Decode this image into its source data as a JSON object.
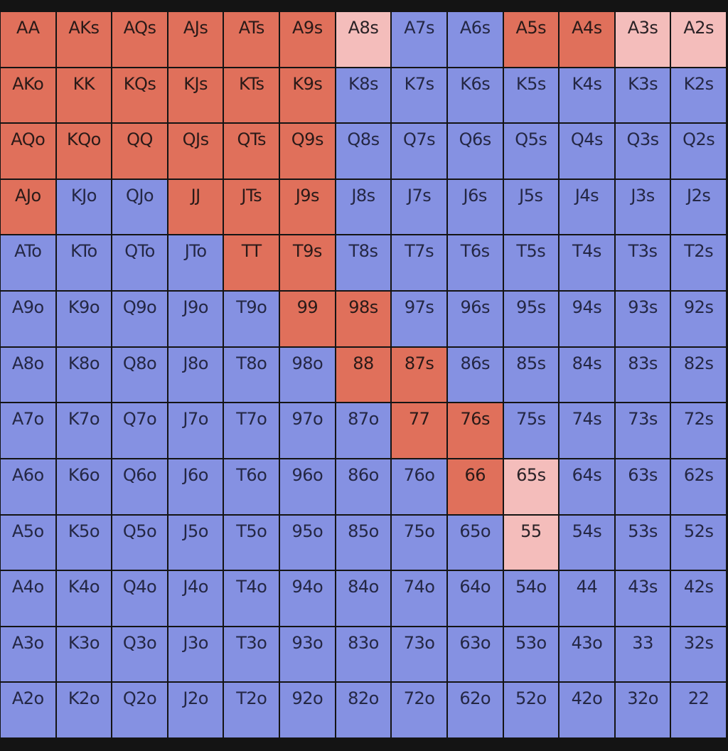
{
  "colors": {
    "raise": "#e0705b",
    "mixed": "#f4bdbb",
    "fold": "#8591e2",
    "background": "#141414"
  },
  "rows": [
    [
      [
        "AA",
        "raise"
      ],
      [
        "AKs",
        "raise"
      ],
      [
        "AQs",
        "raise"
      ],
      [
        "AJs",
        "raise"
      ],
      [
        "ATs",
        "raise"
      ],
      [
        "A9s",
        "raise"
      ],
      [
        "A8s",
        "mixed"
      ],
      [
        "A7s",
        "fold"
      ],
      [
        "A6s",
        "fold"
      ],
      [
        "A5s",
        "raise"
      ],
      [
        "A4s",
        "raise"
      ],
      [
        "A3s",
        "mixed"
      ],
      [
        "A2s",
        "mixed"
      ]
    ],
    [
      [
        "AKo",
        "raise"
      ],
      [
        "KK",
        "raise"
      ],
      [
        "KQs",
        "raise"
      ],
      [
        "KJs",
        "raise"
      ],
      [
        "KTs",
        "raise"
      ],
      [
        "K9s",
        "raise"
      ],
      [
        "K8s",
        "fold"
      ],
      [
        "K7s",
        "fold"
      ],
      [
        "K6s",
        "fold"
      ],
      [
        "K5s",
        "fold"
      ],
      [
        "K4s",
        "fold"
      ],
      [
        "K3s",
        "fold"
      ],
      [
        "K2s",
        "fold"
      ]
    ],
    [
      [
        "AQo",
        "raise"
      ],
      [
        "KQo",
        "raise"
      ],
      [
        "QQ",
        "raise"
      ],
      [
        "QJs",
        "raise"
      ],
      [
        "QTs",
        "raise"
      ],
      [
        "Q9s",
        "raise"
      ],
      [
        "Q8s",
        "fold"
      ],
      [
        "Q7s",
        "fold"
      ],
      [
        "Q6s",
        "fold"
      ],
      [
        "Q5s",
        "fold"
      ],
      [
        "Q4s",
        "fold"
      ],
      [
        "Q3s",
        "fold"
      ],
      [
        "Q2s",
        "fold"
      ]
    ],
    [
      [
        "AJo",
        "raise"
      ],
      [
        "KJo",
        "fold"
      ],
      [
        "QJo",
        "fold"
      ],
      [
        "JJ",
        "raise"
      ],
      [
        "JTs",
        "raise"
      ],
      [
        "J9s",
        "raise"
      ],
      [
        "J8s",
        "fold"
      ],
      [
        "J7s",
        "fold"
      ],
      [
        "J6s",
        "fold"
      ],
      [
        "J5s",
        "fold"
      ],
      [
        "J4s",
        "fold"
      ],
      [
        "J3s",
        "fold"
      ],
      [
        "J2s",
        "fold"
      ]
    ],
    [
      [
        "ATo",
        "fold"
      ],
      [
        "KTo",
        "fold"
      ],
      [
        "QTo",
        "fold"
      ],
      [
        "JTo",
        "fold"
      ],
      [
        "TT",
        "raise"
      ],
      [
        "T9s",
        "raise"
      ],
      [
        "T8s",
        "fold"
      ],
      [
        "T7s",
        "fold"
      ],
      [
        "T6s",
        "fold"
      ],
      [
        "T5s",
        "fold"
      ],
      [
        "T4s",
        "fold"
      ],
      [
        "T3s",
        "fold"
      ],
      [
        "T2s",
        "fold"
      ]
    ],
    [
      [
        "A9o",
        "fold"
      ],
      [
        "K9o",
        "fold"
      ],
      [
        "Q9o",
        "fold"
      ],
      [
        "J9o",
        "fold"
      ],
      [
        "T9o",
        "fold"
      ],
      [
        "99",
        "raise"
      ],
      [
        "98s",
        "raise"
      ],
      [
        "97s",
        "fold"
      ],
      [
        "96s",
        "fold"
      ],
      [
        "95s",
        "fold"
      ],
      [
        "94s",
        "fold"
      ],
      [
        "93s",
        "fold"
      ],
      [
        "92s",
        "fold"
      ]
    ],
    [
      [
        "A8o",
        "fold"
      ],
      [
        "K8o",
        "fold"
      ],
      [
        "Q8o",
        "fold"
      ],
      [
        "J8o",
        "fold"
      ],
      [
        "T8o",
        "fold"
      ],
      [
        "98o",
        "fold"
      ],
      [
        "88",
        "raise"
      ],
      [
        "87s",
        "raise"
      ],
      [
        "86s",
        "fold"
      ],
      [
        "85s",
        "fold"
      ],
      [
        "84s",
        "fold"
      ],
      [
        "83s",
        "fold"
      ],
      [
        "82s",
        "fold"
      ]
    ],
    [
      [
        "A7o",
        "fold"
      ],
      [
        "K7o",
        "fold"
      ],
      [
        "Q7o",
        "fold"
      ],
      [
        "J7o",
        "fold"
      ],
      [
        "T7o",
        "fold"
      ],
      [
        "97o",
        "fold"
      ],
      [
        "87o",
        "fold"
      ],
      [
        "77",
        "raise"
      ],
      [
        "76s",
        "raise"
      ],
      [
        "75s",
        "fold"
      ],
      [
        "74s",
        "fold"
      ],
      [
        "73s",
        "fold"
      ],
      [
        "72s",
        "fold"
      ]
    ],
    [
      [
        "A6o",
        "fold"
      ],
      [
        "K6o",
        "fold"
      ],
      [
        "Q6o",
        "fold"
      ],
      [
        "J6o",
        "fold"
      ],
      [
        "T6o",
        "fold"
      ],
      [
        "96o",
        "fold"
      ],
      [
        "86o",
        "fold"
      ],
      [
        "76o",
        "fold"
      ],
      [
        "66",
        "raise"
      ],
      [
        "65s",
        "mixed"
      ],
      [
        "64s",
        "fold"
      ],
      [
        "63s",
        "fold"
      ],
      [
        "62s",
        "fold"
      ]
    ],
    [
      [
        "A5o",
        "fold"
      ],
      [
        "K5o",
        "fold"
      ],
      [
        "Q5o",
        "fold"
      ],
      [
        "J5o",
        "fold"
      ],
      [
        "T5o",
        "fold"
      ],
      [
        "95o",
        "fold"
      ],
      [
        "85o",
        "fold"
      ],
      [
        "75o",
        "fold"
      ],
      [
        "65o",
        "fold"
      ],
      [
        "55",
        "mixed"
      ],
      [
        "54s",
        "fold"
      ],
      [
        "53s",
        "fold"
      ],
      [
        "52s",
        "fold"
      ]
    ],
    [
      [
        "A4o",
        "fold"
      ],
      [
        "K4o",
        "fold"
      ],
      [
        "Q4o",
        "fold"
      ],
      [
        "J4o",
        "fold"
      ],
      [
        "T4o",
        "fold"
      ],
      [
        "94o",
        "fold"
      ],
      [
        "84o",
        "fold"
      ],
      [
        "74o",
        "fold"
      ],
      [
        "64o",
        "fold"
      ],
      [
        "54o",
        "fold"
      ],
      [
        "44",
        "fold"
      ],
      [
        "43s",
        "fold"
      ],
      [
        "42s",
        "fold"
      ]
    ],
    [
      [
        "A3o",
        "fold"
      ],
      [
        "K3o",
        "fold"
      ],
      [
        "Q3o",
        "fold"
      ],
      [
        "J3o",
        "fold"
      ],
      [
        "T3o",
        "fold"
      ],
      [
        "93o",
        "fold"
      ],
      [
        "83o",
        "fold"
      ],
      [
        "73o",
        "fold"
      ],
      [
        "63o",
        "fold"
      ],
      [
        "53o",
        "fold"
      ],
      [
        "43o",
        "fold"
      ],
      [
        "33",
        "fold"
      ],
      [
        "32s",
        "fold"
      ]
    ],
    [
      [
        "A2o",
        "fold"
      ],
      [
        "K2o",
        "fold"
      ],
      [
        "Q2o",
        "fold"
      ],
      [
        "J2o",
        "fold"
      ],
      [
        "T2o",
        "fold"
      ],
      [
        "92o",
        "fold"
      ],
      [
        "82o",
        "fold"
      ],
      [
        "72o",
        "fold"
      ],
      [
        "62o",
        "fold"
      ],
      [
        "52o",
        "fold"
      ],
      [
        "42o",
        "fold"
      ],
      [
        "32o",
        "fold"
      ],
      [
        "22",
        "fold"
      ]
    ]
  ]
}
